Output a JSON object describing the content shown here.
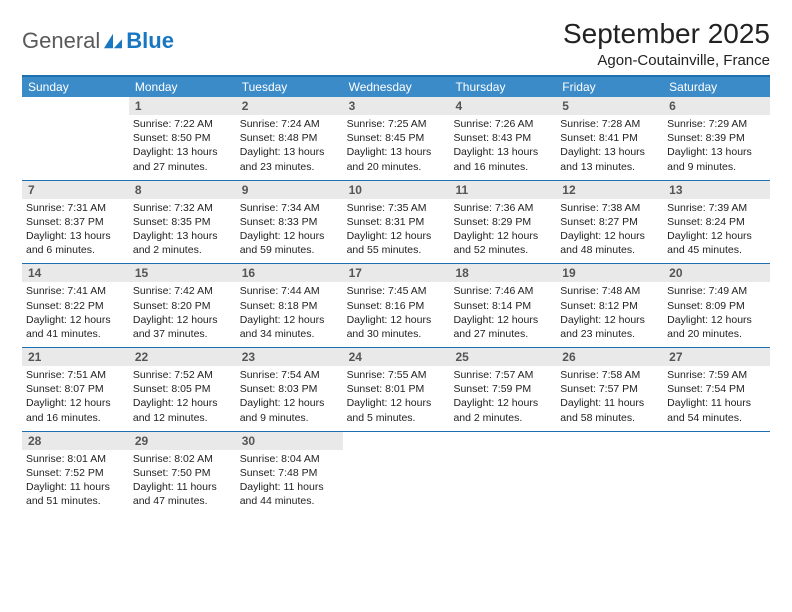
{
  "logo": {
    "part1": "General",
    "part2": "Blue"
  },
  "header": {
    "title": "September 2025",
    "location": "Agon-Coutainville, France"
  },
  "colors": {
    "header_bar": "#3b8bc9",
    "accent_line": "#1e6fb0",
    "daynum_bg": "#e9e9e9",
    "logo_blue": "#1976c1",
    "logo_gray": "#5a5a5a",
    "text": "#222222",
    "background": "#ffffff"
  },
  "dow": [
    "Sunday",
    "Monday",
    "Tuesday",
    "Wednesday",
    "Thursday",
    "Friday",
    "Saturday"
  ],
  "weeks": [
    [
      {
        "n": "",
        "lines": []
      },
      {
        "n": "1",
        "lines": [
          "Sunrise: 7:22 AM",
          "Sunset: 8:50 PM",
          "Daylight: 13 hours and 27 minutes."
        ]
      },
      {
        "n": "2",
        "lines": [
          "Sunrise: 7:24 AM",
          "Sunset: 8:48 PM",
          "Daylight: 13 hours and 23 minutes."
        ]
      },
      {
        "n": "3",
        "lines": [
          "Sunrise: 7:25 AM",
          "Sunset: 8:45 PM",
          "Daylight: 13 hours and 20 minutes."
        ]
      },
      {
        "n": "4",
        "lines": [
          "Sunrise: 7:26 AM",
          "Sunset: 8:43 PM",
          "Daylight: 13 hours and 16 minutes."
        ]
      },
      {
        "n": "5",
        "lines": [
          "Sunrise: 7:28 AM",
          "Sunset: 8:41 PM",
          "Daylight: 13 hours and 13 minutes."
        ]
      },
      {
        "n": "6",
        "lines": [
          "Sunrise: 7:29 AM",
          "Sunset: 8:39 PM",
          "Daylight: 13 hours and 9 minutes."
        ]
      }
    ],
    [
      {
        "n": "7",
        "lines": [
          "Sunrise: 7:31 AM",
          "Sunset: 8:37 PM",
          "Daylight: 13 hours and 6 minutes."
        ]
      },
      {
        "n": "8",
        "lines": [
          "Sunrise: 7:32 AM",
          "Sunset: 8:35 PM",
          "Daylight: 13 hours and 2 minutes."
        ]
      },
      {
        "n": "9",
        "lines": [
          "Sunrise: 7:34 AM",
          "Sunset: 8:33 PM",
          "Daylight: 12 hours and 59 minutes."
        ]
      },
      {
        "n": "10",
        "lines": [
          "Sunrise: 7:35 AM",
          "Sunset: 8:31 PM",
          "Daylight: 12 hours and 55 minutes."
        ]
      },
      {
        "n": "11",
        "lines": [
          "Sunrise: 7:36 AM",
          "Sunset: 8:29 PM",
          "Daylight: 12 hours and 52 minutes."
        ]
      },
      {
        "n": "12",
        "lines": [
          "Sunrise: 7:38 AM",
          "Sunset: 8:27 PM",
          "Daylight: 12 hours and 48 minutes."
        ]
      },
      {
        "n": "13",
        "lines": [
          "Sunrise: 7:39 AM",
          "Sunset: 8:24 PM",
          "Daylight: 12 hours and 45 minutes."
        ]
      }
    ],
    [
      {
        "n": "14",
        "lines": [
          "Sunrise: 7:41 AM",
          "Sunset: 8:22 PM",
          "Daylight: 12 hours and 41 minutes."
        ]
      },
      {
        "n": "15",
        "lines": [
          "Sunrise: 7:42 AM",
          "Sunset: 8:20 PM",
          "Daylight: 12 hours and 37 minutes."
        ]
      },
      {
        "n": "16",
        "lines": [
          "Sunrise: 7:44 AM",
          "Sunset: 8:18 PM",
          "Daylight: 12 hours and 34 minutes."
        ]
      },
      {
        "n": "17",
        "lines": [
          "Sunrise: 7:45 AM",
          "Sunset: 8:16 PM",
          "Daylight: 12 hours and 30 minutes."
        ]
      },
      {
        "n": "18",
        "lines": [
          "Sunrise: 7:46 AM",
          "Sunset: 8:14 PM",
          "Daylight: 12 hours and 27 minutes."
        ]
      },
      {
        "n": "19",
        "lines": [
          "Sunrise: 7:48 AM",
          "Sunset: 8:12 PM",
          "Daylight: 12 hours and 23 minutes."
        ]
      },
      {
        "n": "20",
        "lines": [
          "Sunrise: 7:49 AM",
          "Sunset: 8:09 PM",
          "Daylight: 12 hours and 20 minutes."
        ]
      }
    ],
    [
      {
        "n": "21",
        "lines": [
          "Sunrise: 7:51 AM",
          "Sunset: 8:07 PM",
          "Daylight: 12 hours and 16 minutes."
        ]
      },
      {
        "n": "22",
        "lines": [
          "Sunrise: 7:52 AM",
          "Sunset: 8:05 PM",
          "Daylight: 12 hours and 12 minutes."
        ]
      },
      {
        "n": "23",
        "lines": [
          "Sunrise: 7:54 AM",
          "Sunset: 8:03 PM",
          "Daylight: 12 hours and 9 minutes."
        ]
      },
      {
        "n": "24",
        "lines": [
          "Sunrise: 7:55 AM",
          "Sunset: 8:01 PM",
          "Daylight: 12 hours and 5 minutes."
        ]
      },
      {
        "n": "25",
        "lines": [
          "Sunrise: 7:57 AM",
          "Sunset: 7:59 PM",
          "Daylight: 12 hours and 2 minutes."
        ]
      },
      {
        "n": "26",
        "lines": [
          "Sunrise: 7:58 AM",
          "Sunset: 7:57 PM",
          "Daylight: 11 hours and 58 minutes."
        ]
      },
      {
        "n": "27",
        "lines": [
          "Sunrise: 7:59 AM",
          "Sunset: 7:54 PM",
          "Daylight: 11 hours and 54 minutes."
        ]
      }
    ],
    [
      {
        "n": "28",
        "lines": [
          "Sunrise: 8:01 AM",
          "Sunset: 7:52 PM",
          "Daylight: 11 hours and 51 minutes."
        ]
      },
      {
        "n": "29",
        "lines": [
          "Sunrise: 8:02 AM",
          "Sunset: 7:50 PM",
          "Daylight: 11 hours and 47 minutes."
        ]
      },
      {
        "n": "30",
        "lines": [
          "Sunrise: 8:04 AM",
          "Sunset: 7:48 PM",
          "Daylight: 11 hours and 44 minutes."
        ]
      },
      {
        "n": "",
        "lines": []
      },
      {
        "n": "",
        "lines": []
      },
      {
        "n": "",
        "lines": []
      },
      {
        "n": "",
        "lines": []
      }
    ]
  ]
}
